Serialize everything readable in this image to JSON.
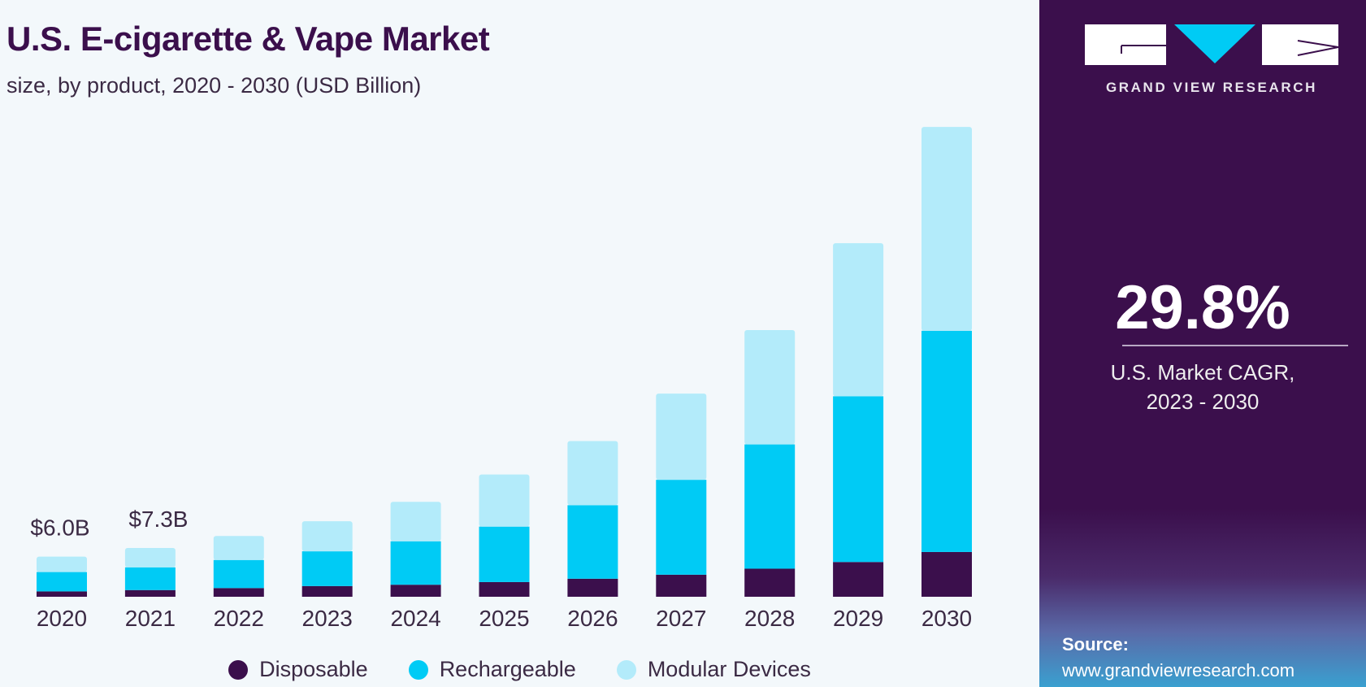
{
  "chart_data": {
    "type": "bar",
    "stacked": true,
    "title": "U.S. E-cigarette & Vape Market",
    "subtitle": "size, by product, 2020 - 2030 (USD Billion)",
    "categories": [
      "2020",
      "2021",
      "2022",
      "2023",
      "2024",
      "2025",
      "2026",
      "2027",
      "2028",
      "2029",
      "2030"
    ],
    "series": [
      {
        "name": "Disposable",
        "color": "#3b0f4c",
        "values": [
          0.8,
          1.0,
          1.3,
          1.6,
          1.8,
          2.2,
          2.7,
          3.3,
          4.2,
          5.2,
          6.7
        ]
      },
      {
        "name": "Rechargeable",
        "color": "#00cbf5",
        "values": [
          2.9,
          3.4,
          4.2,
          5.2,
          6.5,
          8.3,
          11.0,
          14.2,
          18.6,
          24.8,
          33.1
        ]
      },
      {
        "name": "Modular Devices",
        "color": "#b3ebfa",
        "values": [
          2.3,
          2.9,
          3.6,
          4.5,
          5.9,
          7.8,
          9.6,
          12.9,
          17.1,
          22.9,
          30.5
        ]
      }
    ],
    "data_labels": [
      {
        "category": "2020",
        "text": "$6.0B"
      },
      {
        "category": "2021",
        "text": "$7.3B"
      }
    ],
    "ylim": [
      0,
      72
    ],
    "grid": false,
    "legend_position": "bottom"
  },
  "panel": {
    "brand": "GRAND VIEW RESEARCH",
    "cagr_value": "29.8%",
    "cagr_label_line1": "U.S. Market CAGR,",
    "cagr_label_line2": "2023 - 2030",
    "source_label": "Source:",
    "source_url": "www.grandviewresearch.com",
    "background_color": "#3b0f4c",
    "accent_color": "#00cbf5"
  }
}
